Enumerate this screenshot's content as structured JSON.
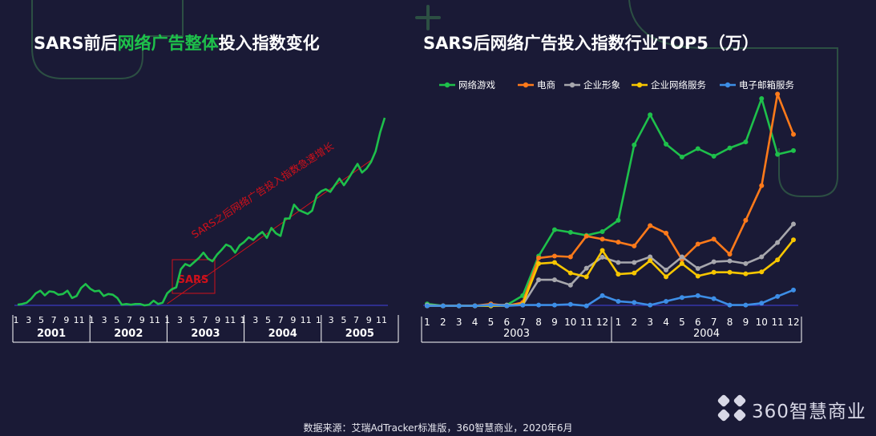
{
  "left": {
    "title_pre": "SARS前后",
    "title_hl": "网络广告整体",
    "title_post": "投入指数变化",
    "annotation": "SARS之后网络广告投入指数急速增长",
    "sars_box": "SARS"
  },
  "right": {
    "title": "SARS后网络广告投入指数行业TOP5（万）"
  },
  "source": "数据来源：艾瑞AdTracker标准版，360智慧商业，2020年6月",
  "brand": "360智慧商业",
  "colors": {
    "background": "#1a1a36",
    "green": "#1ec04b",
    "orange": "#ff7a1a",
    "gray": "#a7a7ad",
    "yellow": "#f7c600",
    "blue": "#3d8ee6",
    "red": "#d0101a"
  },
  "chart_data": [
    {
      "type": "line",
      "x_tick_labels": [
        "1",
        "3",
        "5",
        "7",
        "9",
        "11",
        "1",
        "3",
        "5",
        "7",
        "9",
        "11",
        "1",
        "3",
        "5",
        "7",
        "9",
        "11",
        "1",
        "3",
        "5",
        "7",
        "9",
        "11",
        "1",
        "3",
        "5",
        "7",
        "9",
        "11"
      ],
      "year_labels": [
        "2001",
        "2002",
        "2003",
        "2004",
        "2005"
      ],
      "series": [
        {
          "color": "#1ec04b",
          "values": [
            1,
            2,
            4,
            10,
            18,
            22,
            15,
            21,
            20,
            16,
            17,
            22,
            11,
            14,
            26,
            32,
            25,
            21,
            22,
            14,
            17,
            16,
            11,
            1,
            2,
            1,
            2,
            2,
            0,
            1,
            7,
            2,
            4,
            18,
            24,
            27,
            54,
            62,
            59,
            65,
            71,
            79,
            70,
            66,
            76,
            83,
            91,
            88,
            79,
            90,
            95,
            102,
            98,
            105,
            110,
            101,
            116,
            108,
            104,
            130,
            130,
            151,
            143,
            140,
            137,
            142,
            165,
            171,
            174,
            170,
            180,
            190,
            180,
            190,
            201,
            212,
            199,
            205,
            215,
            231,
            259,
            281
          ]
        }
      ]
    },
    {
      "type": "line",
      "x": [
        "1",
        "2",
        "3",
        "4",
        "5",
        "6",
        "7",
        "8",
        "9",
        "10",
        "11",
        "12",
        "1",
        "2",
        "3",
        "4",
        "5",
        "6",
        "7",
        "8",
        "9",
        "10",
        "11",
        "12"
      ],
      "year_labels": [
        "2003",
        "2004"
      ],
      "series": [
        {
          "name": "网络游戏",
          "color": "#1ec04b",
          "values": [
            8,
            3,
            3,
            3,
            3,
            5,
            30,
            135,
            205,
            198,
            190,
            200,
            230,
            430,
            510,
            432,
            398,
            420,
            400,
            422,
            438,
            553,
            405,
            415
          ]
        },
        {
          "name": "电商",
          "color": "#ff7a1a",
          "values": [
            3,
            3,
            3,
            3,
            8,
            3,
            12,
            130,
            135,
            133,
            188,
            180,
            172,
            162,
            216,
            196,
            126,
            167,
            180,
            140,
            230,
            322,
            565,
            458
          ]
        },
        {
          "name": "企业形象",
          "color": "#a7a7ad",
          "values": [
            5,
            3,
            3,
            3,
            5,
            5,
            5,
            72,
            72,
            58,
            103,
            132,
            118,
            118,
            133,
            98,
            133,
            102,
            120,
            122,
            115,
            133,
            171,
            220
          ]
        },
        {
          "name": "企业网络服务",
          "color": "#f7c600",
          "values": [
            3,
            3,
            3,
            3,
            3,
            3,
            7,
            115,
            118,
            90,
            80,
            150,
            87,
            90,
            123,
            80,
            115,
            82,
            92,
            92,
            88,
            93,
            125,
            178
          ]
        },
        {
          "name": "电子邮箱服务",
          "color": "#3d8ee6",
          "values": [
            3,
            3,
            3,
            3,
            5,
            3,
            5,
            5,
            5,
            7,
            3,
            30,
            15,
            12,
            5,
            15,
            25,
            30,
            22,
            5,
            5,
            10,
            28,
            45
          ]
        }
      ]
    }
  ]
}
